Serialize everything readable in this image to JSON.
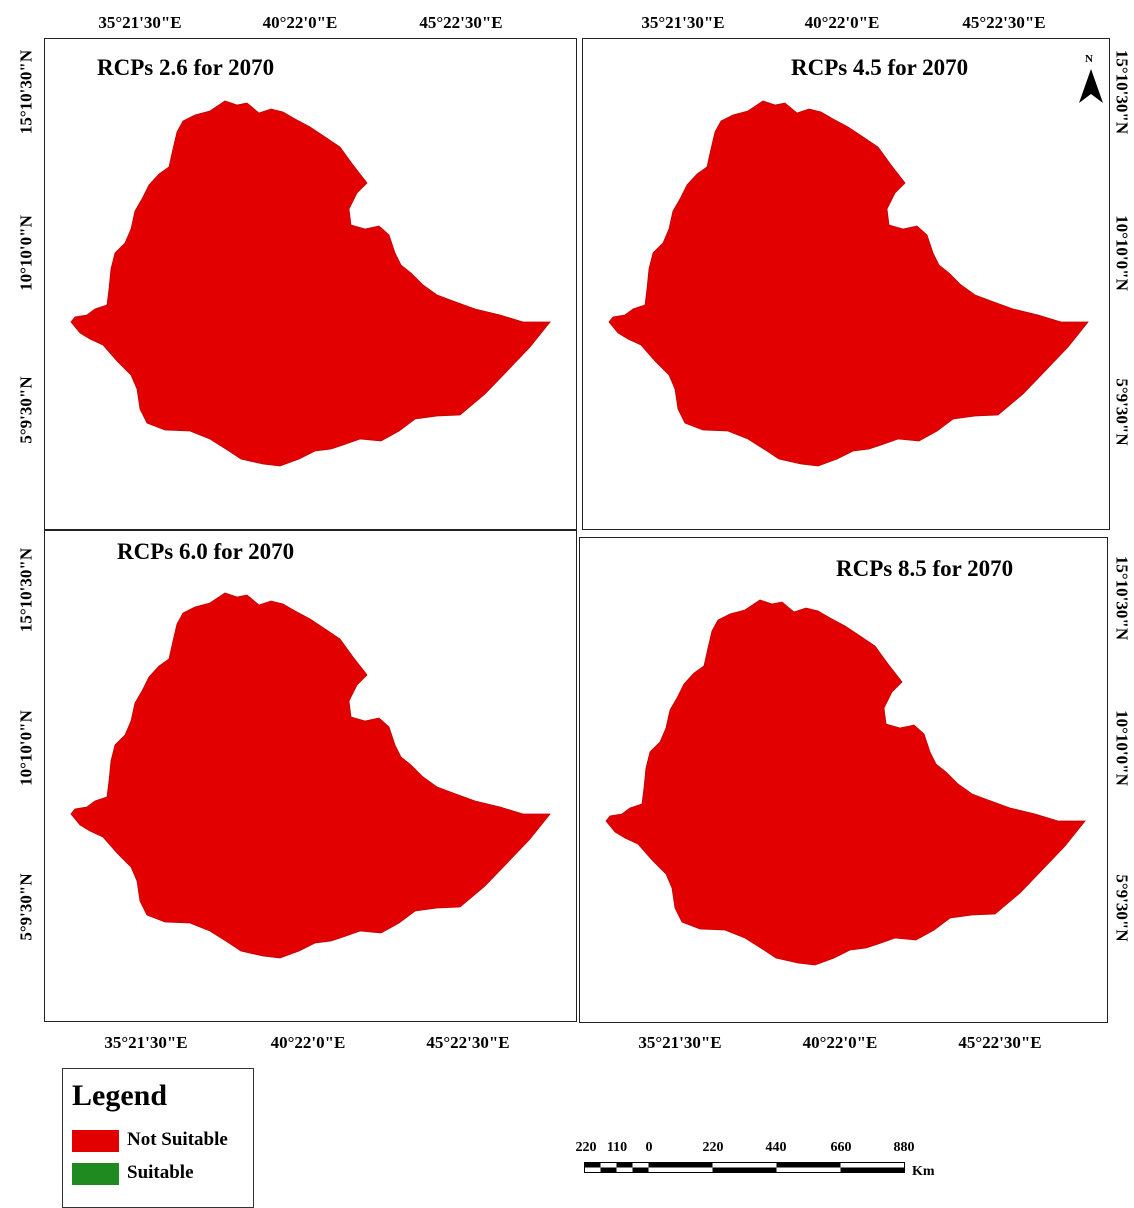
{
  "figure": {
    "colors": {
      "not_suitable": "#e20000",
      "suitable": "#1f8a1f",
      "frame": "#222222"
    },
    "panels": [
      {
        "id": "rcp26",
        "title": "RCPs 2.6 for 2070",
        "class": "Not Suitable"
      },
      {
        "id": "rcp45",
        "title": "RCPs 4.5 for 2070",
        "class": "Not Suitable"
      },
      {
        "id": "rcp60",
        "title": "RCPs 6.0 for 2070",
        "class": "Not Suitable"
      },
      {
        "id": "rcp85",
        "title": "RCPs 8.5 for 2070",
        "class": "Not Suitable"
      }
    ],
    "longitude_labels": [
      "35°21'30\"E",
      "40°22'0\"E",
      "45°22'30\"E"
    ],
    "latitude_labels": [
      "15°10'30\"N",
      "10°10'0\"N",
      "5°9'30\"N"
    ],
    "north_arrow": {
      "label": "N",
      "icon": "north-arrow-icon"
    },
    "legend": {
      "title": "Legend",
      "items": [
        {
          "label": "Not Suitable",
          "color": "#e20000"
        },
        {
          "label": "Suitable",
          "color": "#1f8a1f"
        }
      ]
    },
    "scale_bar": {
      "labels": [
        "220",
        "110",
        "0",
        "220",
        "440",
        "660",
        "880"
      ],
      "unit": "Km"
    }
  }
}
